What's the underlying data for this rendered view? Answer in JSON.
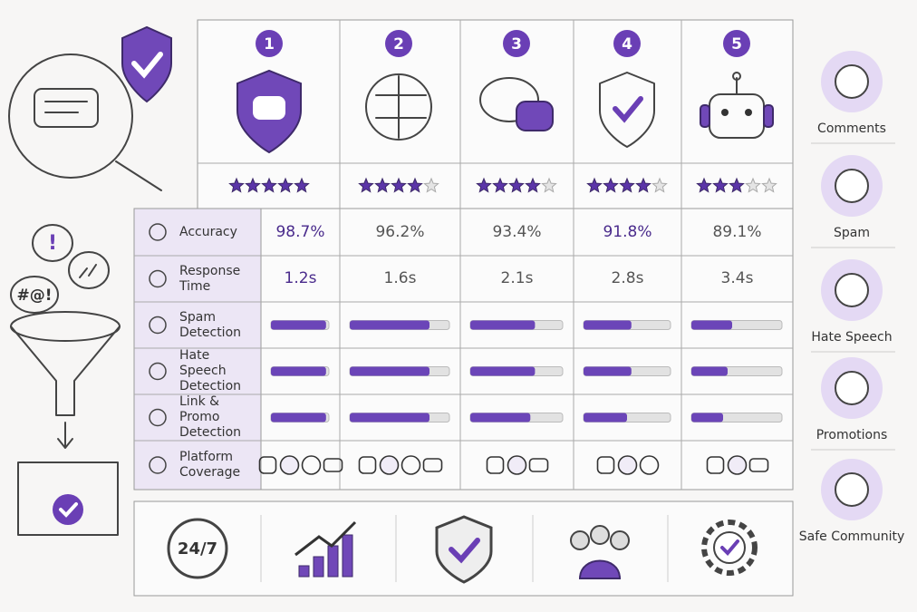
{
  "left_panel": {
    "symbols": [
      "!",
      "#@!"
    ]
  },
  "rating_scale": 5,
  "bar_range": [
    0,
    100
  ],
  "row_labels": [
    "Accuracy",
    "Response Time",
    "Spam Detection",
    "Hate Speech Detection",
    "Link & Promo Detection",
    "Platform Coverage"
  ],
  "columns": [
    {
      "number": 1,
      "rating": 5,
      "accuracy": "98.7%",
      "response_time": "1.2s",
      "spam_detection": 95,
      "hate_speech_detection": 95,
      "link_promo_detection": 95
    },
    {
      "number": 2,
      "rating": 4,
      "accuracy": "96.2%",
      "response_time": "1.6s",
      "spam_detection": 80,
      "hate_speech_detection": 80,
      "link_promo_detection": 80
    },
    {
      "number": 3,
      "rating": 4,
      "accuracy": "93.4%",
      "response_time": "2.1s",
      "spam_detection": 70,
      "hate_speech_detection": 70,
      "link_promo_detection": 65
    },
    {
      "number": 4,
      "rating": 4,
      "accuracy": "91.8%",
      "response_time": "2.8s",
      "spam_detection": 55,
      "hate_speech_detection": 55,
      "link_promo_detection": 50
    },
    {
      "number": 5,
      "rating": 3,
      "accuracy": "89.1%",
      "response_time": "3.4s",
      "spam_detection": 45,
      "hate_speech_detection": 40,
      "link_promo_detection": 35
    }
  ],
  "sidebar": [
    "Comments",
    "Spam",
    "Hate Speech",
    "Promotions",
    "Safe Community"
  ],
  "bottom": [
    "24/7"
  ]
}
